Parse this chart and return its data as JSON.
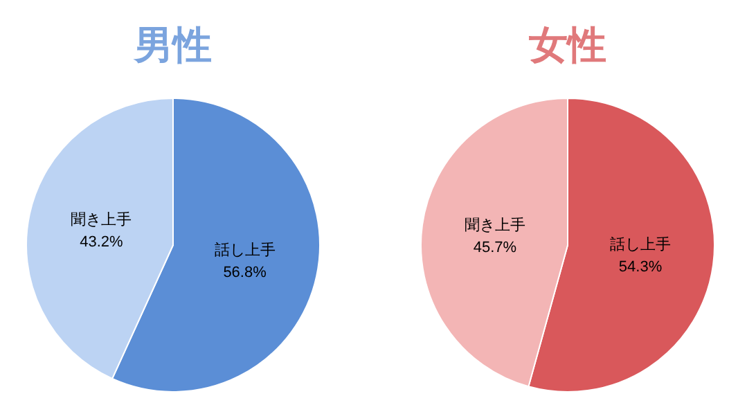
{
  "chart_data": [
    {
      "type": "pie",
      "title": "男性",
      "categories": [
        "話し上手",
        "聞き上手"
      ],
      "values": [
        56.8,
        43.2
      ],
      "colors": [
        "#5b8ed6",
        "#bcd3f3"
      ],
      "value_labels": [
        "56.8%",
        "43.2%"
      ]
    },
    {
      "type": "pie",
      "title": "女性",
      "categories": [
        "話し上手",
        "聞き上手"
      ],
      "values": [
        54.3,
        45.7
      ],
      "colors": [
        "#d9585b",
        "#f3b5b5"
      ],
      "value_labels": [
        "54.3%",
        "45.7%"
      ]
    }
  ]
}
